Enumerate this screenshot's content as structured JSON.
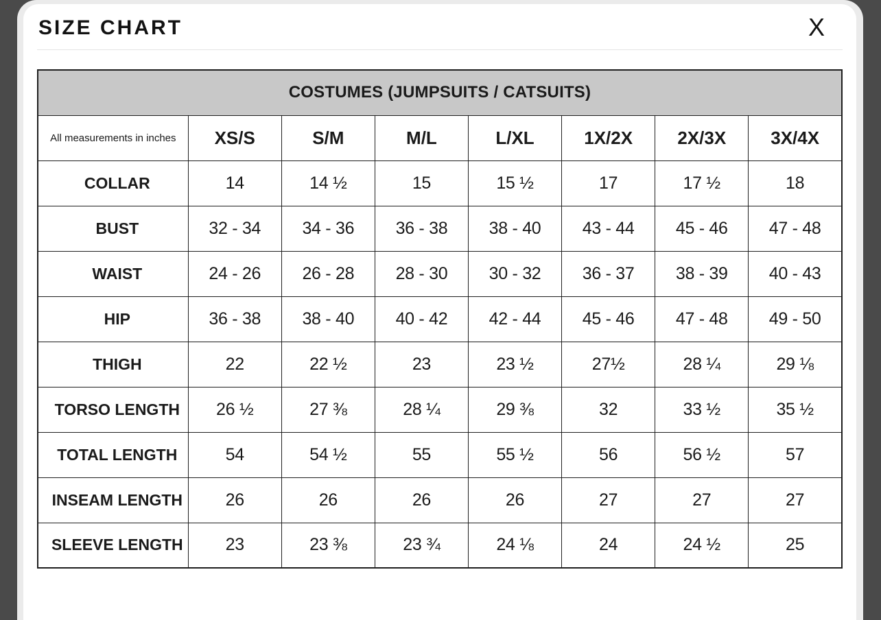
{
  "modal": {
    "title": "SIZE CHART",
    "close_label": "X"
  },
  "table": {
    "caption": "COSTUMES (JUMPSUITS / CATSUITS)",
    "note": "All measurements in inches",
    "columns": [
      "XS/S",
      "S/M",
      "M/L",
      "L/XL",
      "1X/2X",
      "2X/3X",
      "3X/4X"
    ],
    "rows": [
      {
        "label": "COLLAR",
        "values": [
          "14",
          "14 ½",
          "15",
          "15 ½",
          "17",
          "17 ½",
          "18"
        ]
      },
      {
        "label": "BUST",
        "values": [
          "32 - 34",
          "34 - 36",
          "36 - 38",
          "38 - 40",
          "43 - 44",
          "45 - 46",
          "47 - 48"
        ]
      },
      {
        "label": "WAIST",
        "values": [
          "24 - 26",
          "26 - 28",
          "28 - 30",
          "30 - 32",
          "36 - 37",
          "38 - 39",
          "40 - 43"
        ]
      },
      {
        "label": "HIP",
        "values": [
          "36 - 38",
          "38 - 40",
          "40 - 42",
          "42 - 44",
          "45 - 46",
          "47 - 48",
          "49 - 50"
        ]
      },
      {
        "label": "THIGH",
        "values": [
          "22",
          "22 ½",
          "23",
          "23 ½",
          "27½",
          "28 ¼",
          "29 ⅛"
        ]
      },
      {
        "label": "TORSO LENGTH",
        "values": [
          "26 ½",
          "27 ⅜",
          "28 ¼",
          "29 ⅜",
          "32",
          "33 ½",
          "35 ½"
        ]
      },
      {
        "label": "TOTAL LENGTH",
        "values": [
          "54",
          "54 ½",
          "55",
          "55 ½",
          "56",
          "56 ½",
          "57"
        ]
      },
      {
        "label": "INSEAM LENGTH",
        "values": [
          "26",
          "26",
          "26",
          "26",
          "27",
          "27",
          "27"
        ]
      },
      {
        "label": "SLEEVE LENGTH",
        "values": [
          "23",
          "23 ⅜",
          "23 ¾",
          "24 ⅛",
          "24",
          "24 ½",
          "25"
        ]
      }
    ]
  },
  "colors": {
    "backdrop": "#4a4a4a",
    "sheet_rim": "#ebebeb",
    "card_bg": "#ffffff",
    "caption_bg": "#c8c8c8",
    "table_border": "#1e1e1e"
  }
}
